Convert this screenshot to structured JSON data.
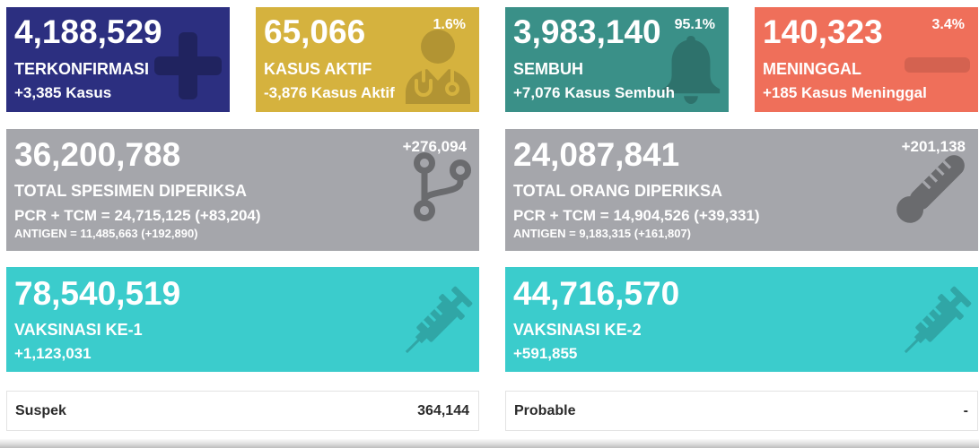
{
  "summary": {
    "confirmed": {
      "value": "4,188,529",
      "label": "TERKONFIRMASI",
      "change": "+3,385 Kasus",
      "icon": "plus-icon"
    },
    "active": {
      "value": "65,066",
      "percent": "1.6%",
      "label": "KASUS AKTIF",
      "change": "-3,876 Kasus Aktif",
      "icon": "doctor-icon"
    },
    "recovered": {
      "value": "3,983,140",
      "percent": "95.1%",
      "label": "SEMBUH",
      "change": "+7,076 Kasus Sembuh",
      "icon": "bell-icon"
    },
    "deaths": {
      "value": "140,323",
      "percent": "3.4%",
      "label": "MENINGGAL",
      "change": "+185 Kasus Meninggal",
      "icon": "minus-icon"
    }
  },
  "testing": {
    "specimens": {
      "value": "36,200,788",
      "change": "+276,094",
      "label": "TOTAL SPESIMEN DIPERIKSA",
      "pcr_tcm": "PCR + TCM = 24,715,125 (+83,204)",
      "antigen": "ANTIGEN = 11,485,663 (+192,890)",
      "icon": "code-fork-icon"
    },
    "people": {
      "value": "24,087,841",
      "change": "+201,138",
      "label": "TOTAL ORANG DIPERIKSA",
      "pcr_tcm": "PCR + TCM = 14,904,526 (+39,331)",
      "antigen": "ANTIGEN = 9,183,315 (+161,807)",
      "icon": "thermometer-icon"
    }
  },
  "vaccination": {
    "dose1": {
      "value": "78,540,519",
      "label": "VAKSINASI KE-1",
      "change": "+1,123,031",
      "icon": "syringe-icon"
    },
    "dose2": {
      "value": "44,716,570",
      "label": "VAKSINASI KE-2",
      "change": "+591,855",
      "icon": "syringe-icon"
    }
  },
  "other": {
    "suspect": {
      "label": "Suspek",
      "value": "364,144"
    },
    "probable": {
      "label": "Probable",
      "value": "-"
    }
  },
  "colors": {
    "confirmed": "#2c2f80",
    "active": "#d5b23e",
    "recovered": "#3a9088",
    "deaths": "#ef6f5a",
    "testing": "#a5a6ab",
    "vaccination": "#3bcccc"
  }
}
